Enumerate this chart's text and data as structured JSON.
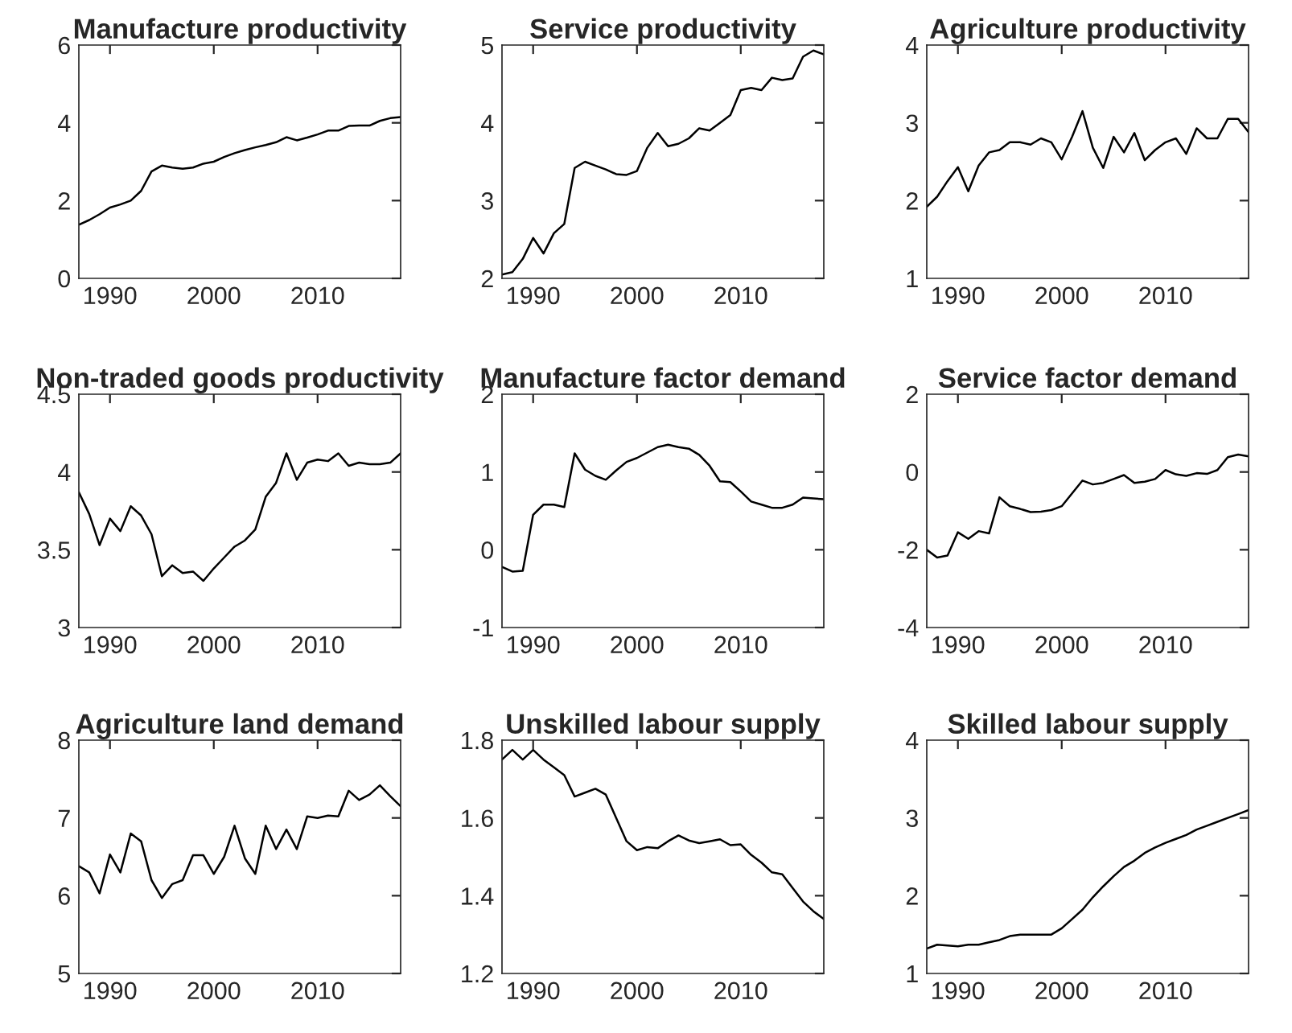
{
  "chart_data": [
    {
      "type": "line",
      "title": "Manufacture productivity",
      "x": [
        1987,
        1988,
        1989,
        1990,
        1991,
        1992,
        1993,
        1994,
        1995,
        1996,
        1997,
        1998,
        1999,
        2000,
        2001,
        2002,
        2003,
        2004,
        2005,
        2006,
        2007,
        2008,
        2009,
        2010,
        2011,
        2012,
        2013,
        2014,
        2015,
        2016,
        2017,
        2018
      ],
      "series": [
        {
          "color": "#000000",
          "values": [
            1.38,
            1.5,
            1.65,
            1.82,
            1.9,
            2.0,
            2.25,
            2.75,
            2.9,
            2.85,
            2.82,
            2.85,
            2.95,
            3.0,
            3.12,
            3.22,
            3.3,
            3.37,
            3.43,
            3.5,
            3.63,
            3.55,
            3.62,
            3.7,
            3.8,
            3.8,
            3.92,
            3.93,
            3.93,
            4.05,
            4.12,
            4.15
          ]
        }
      ],
      "xlim": [
        1987,
        2018
      ],
      "xticks": [
        1990,
        2000,
        2010
      ],
      "ylim": [
        0,
        6
      ],
      "yticks": [
        0,
        2,
        4,
        6
      ]
    },
    {
      "type": "line",
      "title": "Service productivity",
      "x": [
        1987,
        1988,
        1989,
        1990,
        1991,
        1992,
        1993,
        1994,
        1995,
        1996,
        1997,
        1998,
        1999,
        2000,
        2001,
        2002,
        2003,
        2004,
        2005,
        2006,
        2007,
        2008,
        2009,
        2010,
        2011,
        2012,
        2013,
        2014,
        2015,
        2016,
        2017,
        2018
      ],
      "series": [
        {
          "color": "#000000",
          "values": [
            2.05,
            2.08,
            2.25,
            2.52,
            2.32,
            2.58,
            2.7,
            3.42,
            3.5,
            3.45,
            3.4,
            3.34,
            3.33,
            3.38,
            3.68,
            3.87,
            3.7,
            3.73,
            3.8,
            3.93,
            3.9,
            4.0,
            4.1,
            4.42,
            4.45,
            4.42,
            4.58,
            4.55,
            4.57,
            4.85,
            4.93,
            4.88
          ]
        }
      ],
      "xlim": [
        1987,
        2018
      ],
      "xticks": [
        1990,
        2000,
        2010
      ],
      "ylim": [
        2,
        5
      ],
      "yticks": [
        2,
        3,
        4,
        5
      ]
    },
    {
      "type": "line",
      "title": "Agriculture productivity",
      "x": [
        1987,
        1988,
        1989,
        1990,
        1991,
        1992,
        1993,
        1994,
        1995,
        1996,
        1997,
        1998,
        1999,
        2000,
        2001,
        2002,
        2003,
        2004,
        2005,
        2006,
        2007,
        2008,
        2009,
        2010,
        2011,
        2012,
        2013,
        2014,
        2015,
        2016,
        2017,
        2018
      ],
      "series": [
        {
          "color": "#000000",
          "values": [
            1.92,
            2.05,
            2.25,
            2.43,
            2.12,
            2.45,
            2.62,
            2.65,
            2.75,
            2.75,
            2.72,
            2.8,
            2.75,
            2.53,
            2.82,
            3.15,
            2.68,
            2.42,
            2.82,
            2.62,
            2.87,
            2.52,
            2.65,
            2.75,
            2.8,
            2.6,
            2.93,
            2.8,
            2.8,
            3.05,
            3.05,
            2.88
          ]
        }
      ],
      "xlim": [
        1987,
        2018
      ],
      "xticks": [
        1990,
        2000,
        2010
      ],
      "ylim": [
        1,
        4
      ],
      "yticks": [
        1,
        2,
        3,
        4
      ]
    },
    {
      "type": "line",
      "title": "Non-traded goods productivity",
      "x": [
        1987,
        1988,
        1989,
        1990,
        1991,
        1992,
        1993,
        1994,
        1995,
        1996,
        1997,
        1998,
        1999,
        2000,
        2001,
        2002,
        2003,
        2004,
        2005,
        2006,
        2007,
        2008,
        2009,
        2010,
        2011,
        2012,
        2013,
        2014,
        2015,
        2016,
        2017,
        2018
      ],
      "series": [
        {
          "color": "#000000",
          "values": [
            3.87,
            3.73,
            3.53,
            3.7,
            3.62,
            3.78,
            3.72,
            3.6,
            3.33,
            3.4,
            3.35,
            3.36,
            3.3,
            3.38,
            3.45,
            3.52,
            3.56,
            3.63,
            3.84,
            3.93,
            4.12,
            3.95,
            4.06,
            4.08,
            4.07,
            4.12,
            4.04,
            4.06,
            4.05,
            4.05,
            4.06,
            4.12
          ]
        }
      ],
      "xlim": [
        1987,
        2018
      ],
      "xticks": [
        1990,
        2000,
        2010
      ],
      "ylim": [
        3,
        4.5
      ],
      "yticks": [
        3,
        3.5,
        4,
        4.5
      ]
    },
    {
      "type": "line",
      "title": "Manufacture factor demand",
      "x": [
        1987,
        1988,
        1989,
        1990,
        1991,
        1992,
        1993,
        1994,
        1995,
        1996,
        1997,
        1998,
        1999,
        2000,
        2001,
        2002,
        2003,
        2004,
        2005,
        2006,
        2007,
        2008,
        2009,
        2010,
        2011,
        2012,
        2013,
        2014,
        2015,
        2016,
        2017,
        2018
      ],
      "series": [
        {
          "color": "#000000",
          "values": [
            -0.22,
            -0.28,
            -0.27,
            0.45,
            0.58,
            0.58,
            0.55,
            1.24,
            1.03,
            0.95,
            0.9,
            1.02,
            1.13,
            1.18,
            1.25,
            1.32,
            1.35,
            1.32,
            1.3,
            1.22,
            1.08,
            0.88,
            0.87,
            0.75,
            0.62,
            0.58,
            0.54,
            0.54,
            0.58,
            0.67,
            0.66,
            0.65
          ]
        }
      ],
      "xlim": [
        1987,
        2018
      ],
      "xticks": [
        1990,
        2000,
        2010
      ],
      "ylim": [
        -1,
        2
      ],
      "yticks": [
        -1,
        0,
        1,
        2
      ]
    },
    {
      "type": "line",
      "title": "Service factor demand",
      "x": [
        1987,
        1988,
        1989,
        1990,
        1991,
        1992,
        1993,
        1994,
        1995,
        1996,
        1997,
        1998,
        1999,
        2000,
        2001,
        2002,
        2003,
        2004,
        2005,
        2006,
        2007,
        2008,
        2009,
        2010,
        2011,
        2012,
        2013,
        2014,
        2015,
        2016,
        2017,
        2018
      ],
      "series": [
        {
          "color": "#000000",
          "values": [
            -2.0,
            -2.2,
            -2.15,
            -1.55,
            -1.72,
            -1.52,
            -1.58,
            -0.65,
            -0.88,
            -0.95,
            -1.03,
            -1.02,
            -0.98,
            -0.88,
            -0.55,
            -0.22,
            -0.32,
            -0.28,
            -0.18,
            -0.08,
            -0.28,
            -0.25,
            -0.18,
            0.05,
            -0.06,
            -0.1,
            -0.03,
            -0.05,
            0.05,
            0.38,
            0.45,
            0.4
          ]
        }
      ],
      "xlim": [
        1987,
        2018
      ],
      "xticks": [
        1990,
        2000,
        2010
      ],
      "ylim": [
        -4,
        2
      ],
      "yticks": [
        -4,
        -2,
        0,
        2
      ]
    },
    {
      "type": "line",
      "title": "Agriculture land demand",
      "x": [
        1987,
        1988,
        1989,
        1990,
        1991,
        1992,
        1993,
        1994,
        1995,
        1996,
        1997,
        1998,
        1999,
        2000,
        2001,
        2002,
        2003,
        2004,
        2005,
        2006,
        2007,
        2008,
        2009,
        2010,
        2011,
        2012,
        2013,
        2014,
        2015,
        2016,
        2017,
        2018
      ],
      "series": [
        {
          "color": "#000000",
          "values": [
            6.38,
            6.3,
            6.03,
            6.53,
            6.3,
            6.8,
            6.7,
            6.2,
            5.97,
            6.15,
            6.2,
            6.52,
            6.52,
            6.28,
            6.5,
            6.9,
            6.48,
            6.28,
            6.9,
            6.6,
            6.85,
            6.6,
            7.02,
            7.0,
            7.03,
            7.02,
            7.35,
            7.23,
            7.3,
            7.42,
            7.28,
            7.15
          ]
        }
      ],
      "xlim": [
        1987,
        2018
      ],
      "xticks": [
        1990,
        2000,
        2010
      ],
      "ylim": [
        5,
        8
      ],
      "yticks": [
        5,
        6,
        7,
        8
      ]
    },
    {
      "type": "line",
      "title": "Unskilled labour supply",
      "x": [
        1987,
        1988,
        1989,
        1990,
        1991,
        1992,
        1993,
        1994,
        1995,
        1996,
        1997,
        1998,
        1999,
        2000,
        2001,
        2002,
        2003,
        2004,
        2005,
        2006,
        2007,
        2008,
        2009,
        2010,
        2011,
        2012,
        2013,
        2014,
        2015,
        2016,
        2017,
        2018
      ],
      "series": [
        {
          "color": "#000000",
          "values": [
            1.75,
            1.775,
            1.75,
            1.775,
            1.75,
            1.73,
            1.71,
            1.655,
            1.665,
            1.675,
            1.66,
            1.6,
            1.54,
            1.517,
            1.525,
            1.522,
            1.54,
            1.555,
            1.542,
            1.535,
            1.54,
            1.545,
            1.53,
            1.532,
            1.505,
            1.485,
            1.46,
            1.455,
            1.42,
            1.385,
            1.36,
            1.34
          ]
        }
      ],
      "xlim": [
        1987,
        2018
      ],
      "xticks": [
        1990,
        2000,
        2010
      ],
      "ylim": [
        1.2,
        1.8
      ],
      "yticks": [
        1.2,
        1.4,
        1.6,
        1.8
      ]
    },
    {
      "type": "line",
      "title": "Skilled labour supply",
      "x": [
        1987,
        1988,
        1989,
        1990,
        1991,
        1992,
        1993,
        1994,
        1995,
        1996,
        1997,
        1998,
        1999,
        2000,
        2001,
        2002,
        2003,
        2004,
        2005,
        2006,
        2007,
        2008,
        2009,
        2010,
        2011,
        2012,
        2013,
        2014,
        2015,
        2016,
        2017,
        2018
      ],
      "series": [
        {
          "color": "#000000",
          "values": [
            1.32,
            1.37,
            1.36,
            1.35,
            1.37,
            1.37,
            1.4,
            1.43,
            1.48,
            1.5,
            1.5,
            1.5,
            1.5,
            1.58,
            1.7,
            1.82,
            1.98,
            2.12,
            2.25,
            2.37,
            2.45,
            2.55,
            2.62,
            2.68,
            2.73,
            2.78,
            2.85,
            2.9,
            2.95,
            3.0,
            3.05,
            3.1
          ]
        }
      ],
      "xlim": [
        1987,
        2018
      ],
      "xticks": [
        1990,
        2000,
        2010
      ],
      "ylim": [
        1,
        4
      ],
      "yticks": [
        1,
        2,
        3,
        4
      ]
    }
  ]
}
